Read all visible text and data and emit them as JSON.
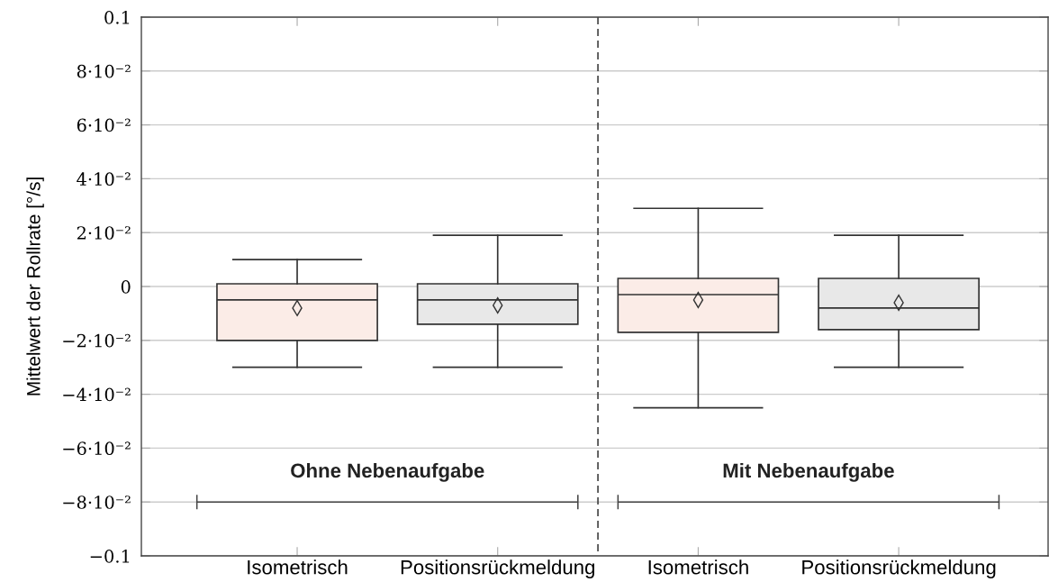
{
  "chart_data": {
    "type": "box",
    "ylabel": "Mittelwert der Rollrate [°/s]",
    "categories": [
      "Isometrisch",
      "Positionsrückmeldung",
      "Isometrisch",
      "Positionsrückmeldung"
    ],
    "boxes": [
      {
        "low": -0.03,
        "q1": -0.02,
        "median": -0.005,
        "q3": 0.001,
        "high": 0.01,
        "mean": -0.008
      },
      {
        "low": -0.03,
        "q1": -0.014,
        "median": -0.005,
        "q3": 0.001,
        "high": 0.019,
        "mean": -0.007
      },
      {
        "low": -0.045,
        "q1": -0.017,
        "median": -0.003,
        "q3": 0.003,
        "high": 0.029,
        "mean": -0.005
      },
      {
        "low": -0.03,
        "q1": -0.016,
        "median": -0.008,
        "q3": 0.003,
        "high": 0.019,
        "mean": -0.006
      }
    ],
    "colors": [
      "#fbece7",
      "#e8e8e8",
      "#fbece7",
      "#e8e8e8"
    ],
    "ylim": [
      -0.1,
      0.1
    ],
    "yticks": [
      {
        "value": -0.1,
        "label": "−0.1"
      },
      {
        "value": -0.08,
        "label": "−8·10⁻²"
      },
      {
        "value": -0.06,
        "label": "−6·10⁻²"
      },
      {
        "value": -0.04,
        "label": "−4·10⁻²"
      },
      {
        "value": -0.02,
        "label": "−2·10⁻²"
      },
      0,
      {
        "value": 0.02,
        "label": "2·10⁻²"
      },
      {
        "value": 0.04,
        "label": "4·10⁻²"
      },
      {
        "value": 0.06,
        "label": "6·10⁻²"
      },
      {
        "value": 0.08,
        "label": "8·10⁻²"
      },
      0.1
    ],
    "grid": "y",
    "marker": "diamond",
    "annotations": [
      "Ohne Nebenaufgabe",
      "Mit Nebenaufgabe"
    ]
  }
}
